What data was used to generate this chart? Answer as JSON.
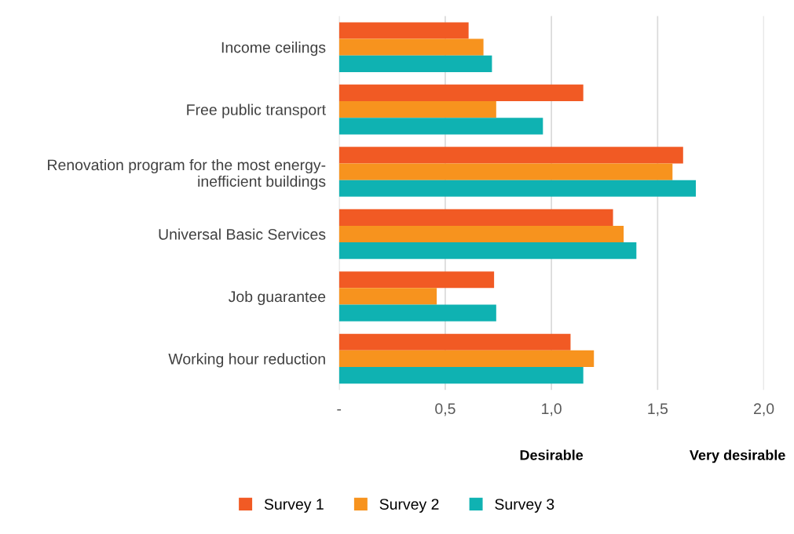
{
  "chart_data": {
    "type": "bar",
    "orientation": "horizontal",
    "categories": [
      "Income ceilings",
      "Free public transport",
      "Renovation program for the most energy-\ninefficient buildings",
      "Universal Basic Services",
      "Job guarantee",
      "Working hour reduction"
    ],
    "series": [
      {
        "name": "Survey 1",
        "color": "#f15a24",
        "values": [
          0.61,
          1.15,
          1.62,
          1.29,
          0.73,
          1.09
        ]
      },
      {
        "name": "Survey 2",
        "color": "#f7931e",
        "values": [
          0.68,
          0.74,
          1.57,
          1.34,
          0.46,
          1.2
        ]
      },
      {
        "name": "Survey 3",
        "color": "#0fb2b2",
        "values": [
          0.72,
          0.96,
          1.68,
          1.4,
          0.74,
          1.15
        ]
      }
    ],
    "xlim": [
      0,
      2.0
    ],
    "xticks": [
      {
        "value": 0,
        "label": "-"
      },
      {
        "value": 0.5,
        "label": "0,5"
      },
      {
        "value": 1.0,
        "label": "1,0"
      },
      {
        "value": 1.5,
        "label": "1,5"
      },
      {
        "value": 2.0,
        "label": "2,0"
      }
    ],
    "annotations": [
      "Desirable",
      "Very desirable"
    ],
    "grid": "x",
    "legend": "bottom"
  }
}
